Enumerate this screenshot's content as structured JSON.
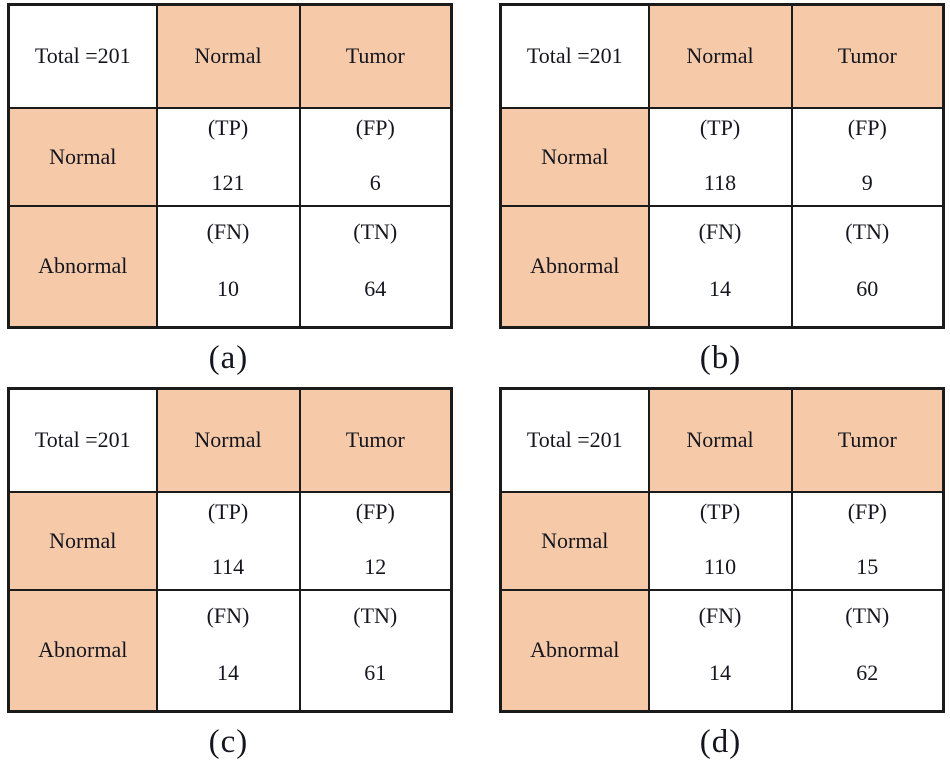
{
  "colors": {
    "header_fill": "#f6caa8",
    "border": "#1b1b1b",
    "text": "#15151f",
    "background": "#ffffff"
  },
  "tables": [
    {
      "caption": "(a)",
      "corner": "Total =201",
      "col_headers": [
        "Normal",
        "Tumor"
      ],
      "row_headers": [
        "Normal",
        "Abnormal"
      ],
      "cells": [
        [
          {
            "label": "(TP)",
            "value": "121"
          },
          {
            "label": "(FP)",
            "value": "6"
          }
        ],
        [
          {
            "label": "(FN)",
            "value": "10"
          },
          {
            "label": "(TN)",
            "value": "64"
          }
        ]
      ]
    },
    {
      "caption": "(b)",
      "corner": "Total =201",
      "col_headers": [
        "Normal",
        "Tumor"
      ],
      "row_headers": [
        "Normal",
        "Abnormal"
      ],
      "cells": [
        [
          {
            "label": "(TP)",
            "value": "118"
          },
          {
            "label": "(FP)",
            "value": "9"
          }
        ],
        [
          {
            "label": "(FN)",
            "value": "14"
          },
          {
            "label": "(TN)",
            "value": "60"
          }
        ]
      ]
    },
    {
      "caption": "(c)",
      "corner": "Total =201",
      "col_headers": [
        "Normal",
        "Tumor"
      ],
      "row_headers": [
        "Normal",
        "Abnormal"
      ],
      "cells": [
        [
          {
            "label": "(TP)",
            "value": "114"
          },
          {
            "label": "(FP)",
            "value": "12"
          }
        ],
        [
          {
            "label": "(FN)",
            "value": "14"
          },
          {
            "label": "(TN)",
            "value": "61"
          }
        ]
      ]
    },
    {
      "caption": "(d)",
      "corner": "Total =201",
      "col_headers": [
        "Normal",
        "Tumor"
      ],
      "row_headers": [
        "Normal",
        "Abnormal"
      ],
      "cells": [
        [
          {
            "label": "(TP)",
            "value": "110"
          },
          {
            "label": "(FP)",
            "value": "15"
          }
        ],
        [
          {
            "label": "(FN)",
            "value": "14"
          },
          {
            "label": "(TN)",
            "value": "62"
          }
        ]
      ]
    }
  ]
}
